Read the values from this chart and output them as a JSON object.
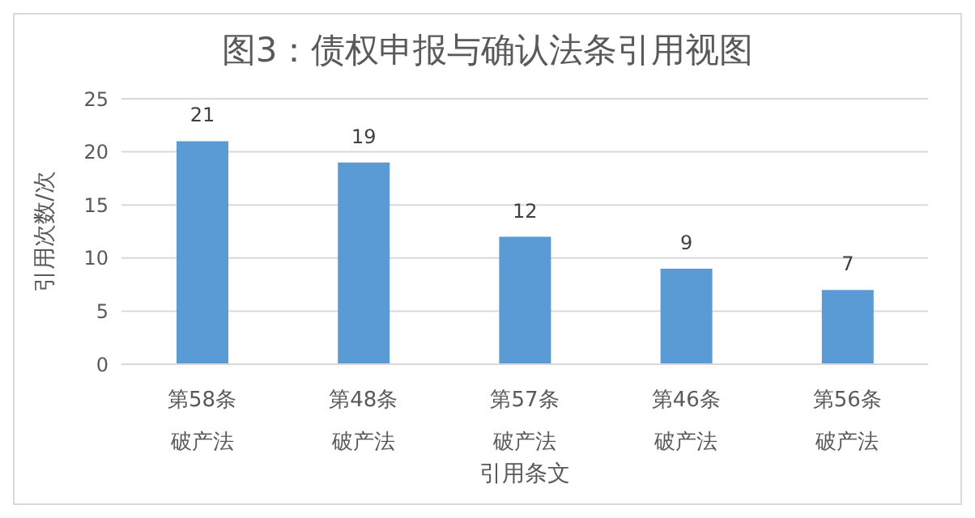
{
  "chart_data": {
    "type": "bar",
    "title": "图3：债权申报与确认法条引用视图",
    "xlabel": "引用条文",
    "ylabel": "引用次数/次",
    "categories": [
      "第58条破产法",
      "第48条破产法",
      "第57条破产法",
      "第46条破产法",
      "第56条破产法"
    ],
    "values": [
      21,
      19,
      12,
      9,
      7
    ],
    "color": "#5b9bd5",
    "ylim": [
      0,
      25
    ],
    "yticks": [
      0,
      5,
      10,
      15,
      20,
      25
    ],
    "grid": "y",
    "data_labels": true
  }
}
